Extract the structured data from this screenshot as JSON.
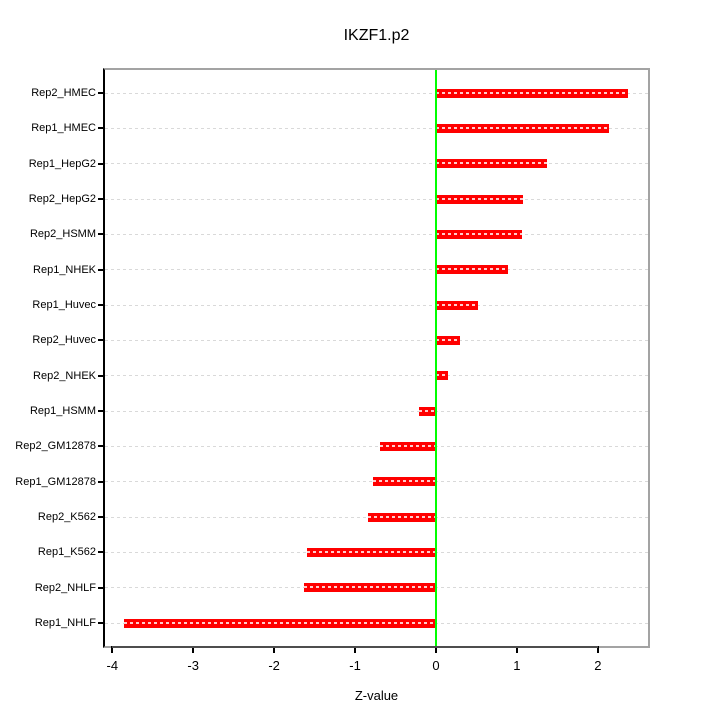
{
  "chart_data": {
    "type": "bar",
    "orientation": "horizontal",
    "title": "IKZF1.p2",
    "xlabel": "Z-value",
    "ylabel": "",
    "categories": [
      "Rep2_HMEC",
      "Rep1_HMEC",
      "Rep1_HepG2",
      "Rep2_HepG2",
      "Rep2_HSMM",
      "Rep1_NHEK",
      "Rep1_Huvec",
      "Rep2_Huvec",
      "Rep2_NHEK",
      "Rep1_HSMM",
      "Rep2_GM12878",
      "Rep1_GM12878",
      "Rep2_K562",
      "Rep1_K562",
      "Rep2_NHLF",
      "Rep1_NHLF"
    ],
    "values": [
      2.37,
      2.14,
      1.37,
      1.07,
      1.06,
      0.89,
      0.52,
      0.3,
      0.15,
      -0.21,
      -0.69,
      -0.78,
      -0.84,
      -1.59,
      -1.63,
      -3.86
    ],
    "x_ticks": [
      "-4",
      "-3",
      "-2",
      "-1",
      "0",
      "1",
      "2"
    ],
    "x_tick_values": [
      -4,
      -3,
      -2,
      -1,
      0,
      1,
      2
    ],
    "xlim": [
      -4.09,
      2.62
    ],
    "grid": "horizontal-dashed",
    "legend": "none",
    "colors": {
      "bar": "#ff0000",
      "zero_line": "#00ff00",
      "grid": "#d9d9d9",
      "box": "#a3a3a3",
      "axis": "#000000"
    }
  }
}
